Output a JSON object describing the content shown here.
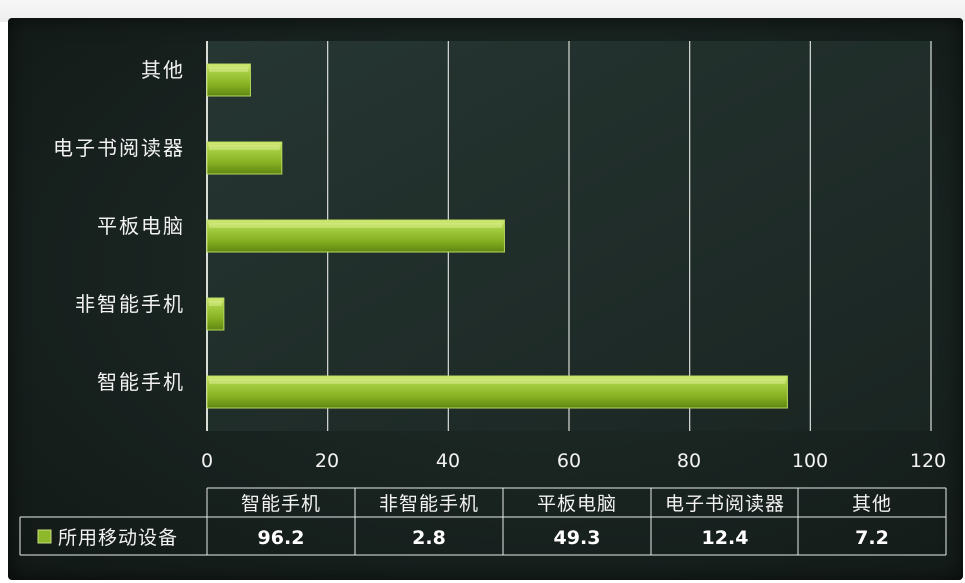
{
  "chart_data": {
    "type": "bar",
    "orientation": "horizontal",
    "categories": [
      "智能手机",
      "非智能手机",
      "平板电脑",
      "电子书阅读器",
      "其他"
    ],
    "series": [
      {
        "name": "所用移动设备",
        "values": [
          96.2,
          2.8,
          49.3,
          12.4,
          7.2
        ]
      }
    ],
    "x_ticks": [
      "0",
      "20",
      "40",
      "60",
      "80",
      "100",
      "120"
    ],
    "xlim": [
      0,
      120
    ],
    "grid": true,
    "data_table": true,
    "value_labels": [
      "96.2",
      "2.8",
      "49.3",
      "12.4",
      "7.2"
    ],
    "bar_color": "#8db82a",
    "background_color": "#1b2522",
    "grid_color": "#d8ddd8"
  }
}
